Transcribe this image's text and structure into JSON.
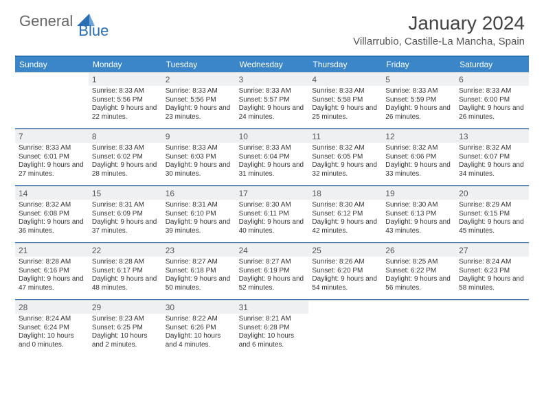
{
  "brand": {
    "part1": "General",
    "part2": "Blue"
  },
  "title": "January 2024",
  "location": "Villarrubio, Castille-La Mancha, Spain",
  "colors": {
    "header_bar": "#3b86c8",
    "rule": "#2a6eb4",
    "shade": "#eef0f1",
    "text": "#333333"
  },
  "day_names": [
    "Sunday",
    "Monday",
    "Tuesday",
    "Wednesday",
    "Thursday",
    "Friday",
    "Saturday"
  ],
  "weeks": [
    [
      {
        "blank": true
      },
      {
        "n": "1",
        "sr": "Sunrise: 8:33 AM",
        "ss": "Sunset: 5:56 PM",
        "dl": "Daylight: 9 hours and 22 minutes."
      },
      {
        "n": "2",
        "sr": "Sunrise: 8:33 AM",
        "ss": "Sunset: 5:56 PM",
        "dl": "Daylight: 9 hours and 23 minutes."
      },
      {
        "n": "3",
        "sr": "Sunrise: 8:33 AM",
        "ss": "Sunset: 5:57 PM",
        "dl": "Daylight: 9 hours and 24 minutes."
      },
      {
        "n": "4",
        "sr": "Sunrise: 8:33 AM",
        "ss": "Sunset: 5:58 PM",
        "dl": "Daylight: 9 hours and 25 minutes."
      },
      {
        "n": "5",
        "sr": "Sunrise: 8:33 AM",
        "ss": "Sunset: 5:59 PM",
        "dl": "Daylight: 9 hours and 26 minutes."
      },
      {
        "n": "6",
        "sr": "Sunrise: 8:33 AM",
        "ss": "Sunset: 6:00 PM",
        "dl": "Daylight: 9 hours and 26 minutes."
      }
    ],
    [
      {
        "n": "7",
        "sr": "Sunrise: 8:33 AM",
        "ss": "Sunset: 6:01 PM",
        "dl": "Daylight: 9 hours and 27 minutes."
      },
      {
        "n": "8",
        "sr": "Sunrise: 8:33 AM",
        "ss": "Sunset: 6:02 PM",
        "dl": "Daylight: 9 hours and 28 minutes."
      },
      {
        "n": "9",
        "sr": "Sunrise: 8:33 AM",
        "ss": "Sunset: 6:03 PM",
        "dl": "Daylight: 9 hours and 30 minutes."
      },
      {
        "n": "10",
        "sr": "Sunrise: 8:33 AM",
        "ss": "Sunset: 6:04 PM",
        "dl": "Daylight: 9 hours and 31 minutes."
      },
      {
        "n": "11",
        "sr": "Sunrise: 8:32 AM",
        "ss": "Sunset: 6:05 PM",
        "dl": "Daylight: 9 hours and 32 minutes."
      },
      {
        "n": "12",
        "sr": "Sunrise: 8:32 AM",
        "ss": "Sunset: 6:06 PM",
        "dl": "Daylight: 9 hours and 33 minutes."
      },
      {
        "n": "13",
        "sr": "Sunrise: 8:32 AM",
        "ss": "Sunset: 6:07 PM",
        "dl": "Daylight: 9 hours and 34 minutes."
      }
    ],
    [
      {
        "n": "14",
        "sr": "Sunrise: 8:32 AM",
        "ss": "Sunset: 6:08 PM",
        "dl": "Daylight: 9 hours and 36 minutes."
      },
      {
        "n": "15",
        "sr": "Sunrise: 8:31 AM",
        "ss": "Sunset: 6:09 PM",
        "dl": "Daylight: 9 hours and 37 minutes."
      },
      {
        "n": "16",
        "sr": "Sunrise: 8:31 AM",
        "ss": "Sunset: 6:10 PM",
        "dl": "Daylight: 9 hours and 39 minutes."
      },
      {
        "n": "17",
        "sr": "Sunrise: 8:30 AM",
        "ss": "Sunset: 6:11 PM",
        "dl": "Daylight: 9 hours and 40 minutes."
      },
      {
        "n": "18",
        "sr": "Sunrise: 8:30 AM",
        "ss": "Sunset: 6:12 PM",
        "dl": "Daylight: 9 hours and 42 minutes."
      },
      {
        "n": "19",
        "sr": "Sunrise: 8:30 AM",
        "ss": "Sunset: 6:13 PM",
        "dl": "Daylight: 9 hours and 43 minutes."
      },
      {
        "n": "20",
        "sr": "Sunrise: 8:29 AM",
        "ss": "Sunset: 6:15 PM",
        "dl": "Daylight: 9 hours and 45 minutes."
      }
    ],
    [
      {
        "n": "21",
        "sr": "Sunrise: 8:28 AM",
        "ss": "Sunset: 6:16 PM",
        "dl": "Daylight: 9 hours and 47 minutes."
      },
      {
        "n": "22",
        "sr": "Sunrise: 8:28 AM",
        "ss": "Sunset: 6:17 PM",
        "dl": "Daylight: 9 hours and 48 minutes."
      },
      {
        "n": "23",
        "sr": "Sunrise: 8:27 AM",
        "ss": "Sunset: 6:18 PM",
        "dl": "Daylight: 9 hours and 50 minutes."
      },
      {
        "n": "24",
        "sr": "Sunrise: 8:27 AM",
        "ss": "Sunset: 6:19 PM",
        "dl": "Daylight: 9 hours and 52 minutes."
      },
      {
        "n": "25",
        "sr": "Sunrise: 8:26 AM",
        "ss": "Sunset: 6:20 PM",
        "dl": "Daylight: 9 hours and 54 minutes."
      },
      {
        "n": "26",
        "sr": "Sunrise: 8:25 AM",
        "ss": "Sunset: 6:22 PM",
        "dl": "Daylight: 9 hours and 56 minutes."
      },
      {
        "n": "27",
        "sr": "Sunrise: 8:24 AM",
        "ss": "Sunset: 6:23 PM",
        "dl": "Daylight: 9 hours and 58 minutes."
      }
    ],
    [
      {
        "n": "28",
        "sr": "Sunrise: 8:24 AM",
        "ss": "Sunset: 6:24 PM",
        "dl": "Daylight: 10 hours and 0 minutes."
      },
      {
        "n": "29",
        "sr": "Sunrise: 8:23 AM",
        "ss": "Sunset: 6:25 PM",
        "dl": "Daylight: 10 hours and 2 minutes."
      },
      {
        "n": "30",
        "sr": "Sunrise: 8:22 AM",
        "ss": "Sunset: 6:26 PM",
        "dl": "Daylight: 10 hours and 4 minutes."
      },
      {
        "n": "31",
        "sr": "Sunrise: 8:21 AM",
        "ss": "Sunset: 6:28 PM",
        "dl": "Daylight: 10 hours and 6 minutes."
      },
      {
        "blank": true
      },
      {
        "blank": true
      },
      {
        "blank": true
      }
    ]
  ]
}
